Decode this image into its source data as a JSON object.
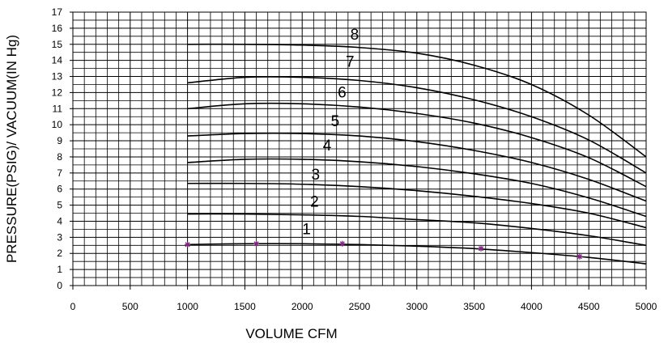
{
  "chart_data": {
    "type": "line",
    "xlabel": "VOLUME CFM",
    "ylabel": "PRESSURE(PSIG)/ VACUUM(IN Hg)",
    "xlim": [
      0,
      5000
    ],
    "ylim": [
      0,
      17
    ],
    "x_ticks": [
      0,
      500,
      1000,
      1500,
      2000,
      2500,
      3000,
      3500,
      4000,
      4500,
      5000
    ],
    "y_ticks": [
      0,
      1,
      2,
      3,
      4,
      5,
      6,
      7,
      8,
      9,
      10,
      11,
      12,
      13,
      14,
      15,
      16,
      17
    ],
    "grid": true,
    "colors": {
      "curves": "#000000",
      "markers": "#7a2a7a",
      "grid": "#000000"
    },
    "series": [
      {
        "name": "1",
        "label_at": [
          2000,
          3.2
        ],
        "x": [
          1000,
          1500,
          2000,
          2500,
          3000,
          3500,
          4000,
          4500,
          5000
        ],
        "y": [
          2.55,
          2.6,
          2.6,
          2.55,
          2.45,
          2.3,
          2.05,
          1.75,
          1.35
        ]
      },
      {
        "name": "2",
        "label_at": [
          2070,
          4.9
        ],
        "x": [
          1000,
          1500,
          2000,
          2500,
          3000,
          3500,
          4000,
          4500,
          5000
        ],
        "y": [
          4.45,
          4.45,
          4.4,
          4.3,
          4.1,
          3.9,
          3.55,
          3.1,
          2.5
        ]
      },
      {
        "name": "3",
        "label_at": [
          2080,
          6.6
        ],
        "x": [
          1000,
          1500,
          2000,
          2500,
          3000,
          3500,
          4000,
          4500,
          5000
        ],
        "y": [
          6.35,
          6.35,
          6.3,
          6.15,
          5.9,
          5.55,
          5.1,
          4.5,
          3.6
        ]
      },
      {
        "name": "4",
        "label_at": [
          2180,
          8.4
        ],
        "x": [
          1000,
          1500,
          2000,
          2500,
          3000,
          3500,
          4000,
          4500,
          5000
        ],
        "y": [
          7.65,
          7.85,
          7.85,
          7.7,
          7.4,
          6.95,
          6.35,
          5.45,
          4.3
        ]
      },
      {
        "name": "5",
        "label_at": [
          2250,
          9.9
        ],
        "x": [
          1000,
          1500,
          2000,
          2500,
          3000,
          3500,
          4000,
          4500,
          5000
        ],
        "y": [
          9.3,
          9.45,
          9.45,
          9.3,
          8.95,
          8.4,
          7.65,
          6.6,
          5.25
        ]
      },
      {
        "name": "6",
        "label_at": [
          2310,
          11.7
        ],
        "x": [
          1000,
          1500,
          2000,
          2500,
          3000,
          3500,
          4000,
          4500,
          5000
        ],
        "y": [
          11.0,
          11.3,
          11.3,
          11.1,
          10.7,
          10.1,
          9.2,
          7.95,
          6.15
        ]
      },
      {
        "name": "7",
        "label_at": [
          2380,
          13.6
        ],
        "x": [
          1000,
          1500,
          2000,
          2500,
          3000,
          3500,
          4000,
          4500,
          5000
        ],
        "y": [
          12.6,
          12.95,
          12.95,
          12.75,
          12.3,
          11.55,
          10.5,
          9.05,
          7.0
        ]
      },
      {
        "name": "8",
        "label_at": [
          2420,
          15.3
        ],
        "x": [
          1000,
          1500,
          2000,
          2500,
          3000,
          3500,
          4000,
          4500,
          5000
        ],
        "y": [
          15.0,
          15.0,
          14.95,
          14.8,
          14.45,
          13.7,
          12.5,
          10.6,
          8.0
        ]
      }
    ],
    "markers": {
      "series": "1",
      "symbol": "*",
      "x": [
        1000,
        1600,
        2350,
        3560,
        4420
      ],
      "y": [
        2.55,
        2.6,
        2.6,
        2.3,
        1.8
      ]
    }
  }
}
